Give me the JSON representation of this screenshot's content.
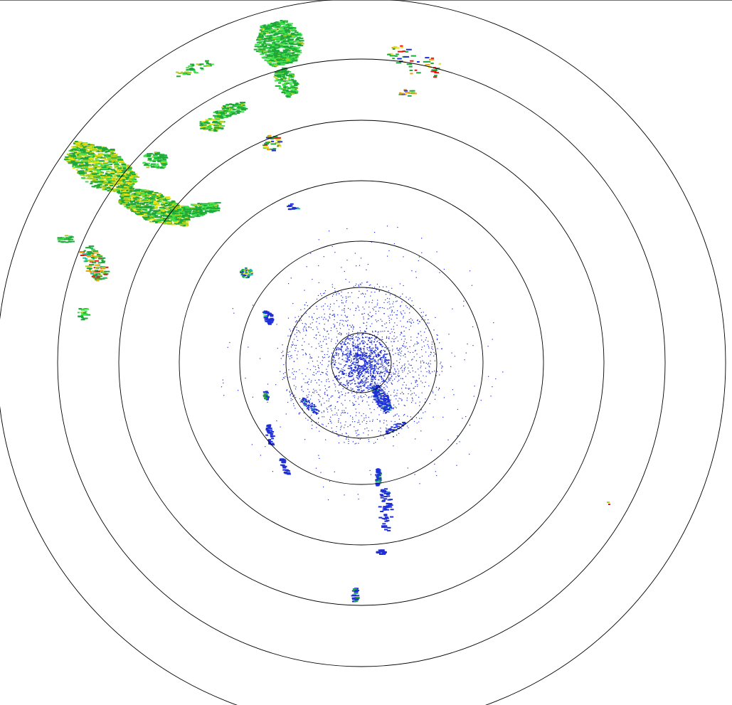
{
  "radar": {
    "type": "reflectivity-ppi",
    "range_ring_count": 7,
    "ring_color": "#000000",
    "palette": {
      "blue": "#1f2fd6",
      "teal": "#20c0a0",
      "light_green": "#3ee04a",
      "green": "#1fa83a",
      "yellow_green": "#a8d020",
      "yellow": "#e8e010",
      "orange": "#f0a000",
      "red": "#f01010"
    }
  }
}
